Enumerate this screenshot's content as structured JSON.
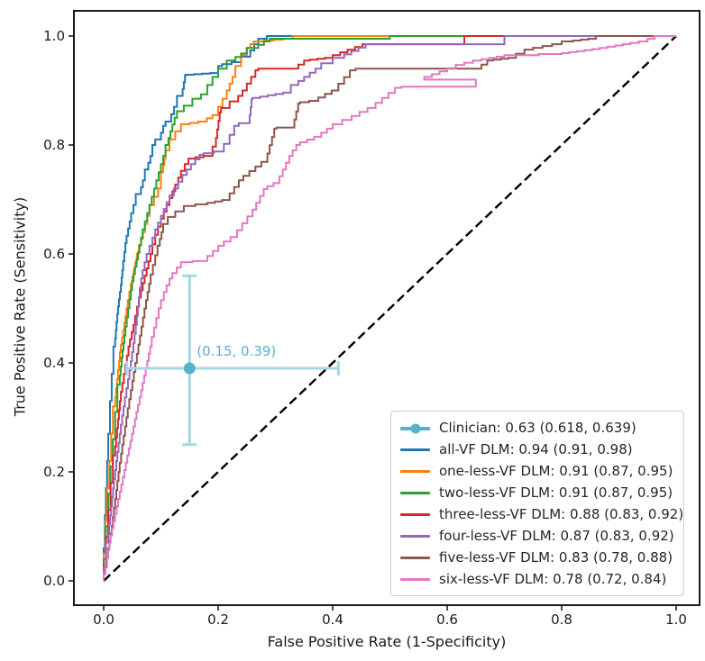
{
  "chart_data": {
    "type": "line",
    "subtype": "roc-curves",
    "title": "",
    "xlabel": "False Positive Rate (1-Specificity)",
    "ylabel": "True Positive Rate (Sensitivity)",
    "xticks": [
      "0.0",
      "0.2",
      "0.4",
      "0.6",
      "0.8",
      "1.0"
    ],
    "yticks": [
      "0.0",
      "0.2",
      "0.4",
      "0.6",
      "0.8",
      "1.0"
    ],
    "xlim": [
      -0.05,
      1.04
    ],
    "ylim": [
      -0.045,
      1.05
    ],
    "grid": false,
    "legend_position": "lower right",
    "diagonal_reference": {
      "from": [
        0,
        0
      ],
      "to": [
        1,
        1
      ],
      "style": "dashed",
      "color": "#000000"
    },
    "clinician": {
      "legend_label": "Clinician: 0.63 (0.618, 0.639)",
      "annotation": "(0.15, 0.39)",
      "x": 0.15,
      "y": 0.39,
      "x_ci": [
        0.04,
        0.41
      ],
      "y_ci": [
        0.25,
        0.56
      ],
      "auc": 0.63,
      "auc_ci": [
        0.618,
        0.639
      ],
      "color": "#54b2cb",
      "errorbar_color": "#a6d8e3"
    },
    "series": [
      {
        "name": "all-VF DLM",
        "legend_label": "all-VF DLM: 0.94 (0.91, 0.98)",
        "auc": 0.94,
        "ci": [
          0.91,
          0.98
        ],
        "color": "#1f77b4",
        "points": [
          [
            0,
            0
          ],
          [
            0.002,
            0.06
          ],
          [
            0.004,
            0.12
          ],
          [
            0.006,
            0.17
          ],
          [
            0.008,
            0.22
          ],
          [
            0.011,
            0.27
          ],
          [
            0.014,
            0.33
          ],
          [
            0.017,
            0.38
          ],
          [
            0.02,
            0.43
          ],
          [
            0.025,
            0.49
          ],
          [
            0.03,
            0.53
          ],
          [
            0.034,
            0.57
          ],
          [
            0.04,
            0.62
          ],
          [
            0.048,
            0.66
          ],
          [
            0.056,
            0.69
          ],
          [
            0.065,
            0.71
          ],
          [
            0.072,
            0.735
          ],
          [
            0.078,
            0.755
          ],
          [
            0.085,
            0.78
          ],
          [
            0.09,
            0.8
          ],
          [
            0.1,
            0.81
          ],
          [
            0.108,
            0.835
          ],
          [
            0.118,
            0.843
          ],
          [
            0.128,
            0.87
          ],
          [
            0.138,
            0.89
          ],
          [
            0.144,
            0.928
          ],
          [
            0.2,
            0.932
          ],
          [
            0.207,
            0.945
          ],
          [
            0.24,
            0.952
          ],
          [
            0.256,
            0.962
          ],
          [
            0.27,
            0.985
          ],
          [
            0.285,
            0.995
          ],
          [
            0.295,
            1.0
          ],
          [
            1,
            1
          ]
        ]
      },
      {
        "name": "one-less-VF DLM",
        "legend_label": "one-less-VF DLM: 0.91 (0.87, 0.95)",
        "auc": 0.91,
        "ci": [
          0.87,
          0.95
        ],
        "color": "#ff7f0e",
        "points": [
          [
            0,
            0
          ],
          [
            0.003,
            0.05
          ],
          [
            0.006,
            0.11
          ],
          [
            0.01,
            0.17
          ],
          [
            0.013,
            0.22
          ],
          [
            0.016,
            0.27
          ],
          [
            0.02,
            0.32
          ],
          [
            0.025,
            0.37
          ],
          [
            0.03,
            0.42
          ],
          [
            0.036,
            0.46
          ],
          [
            0.042,
            0.5
          ],
          [
            0.05,
            0.545
          ],
          [
            0.058,
            0.585
          ],
          [
            0.065,
            0.615
          ],
          [
            0.072,
            0.64
          ],
          [
            0.08,
            0.67
          ],
          [
            0.088,
            0.69
          ],
          [
            0.095,
            0.705
          ],
          [
            0.1,
            0.72
          ],
          [
            0.104,
            0.75
          ],
          [
            0.108,
            0.775
          ],
          [
            0.115,
            0.79
          ],
          [
            0.125,
            0.81
          ],
          [
            0.135,
            0.825
          ],
          [
            0.15,
            0.838
          ],
          [
            0.18,
            0.843
          ],
          [
            0.2,
            0.855
          ],
          [
            0.215,
            0.885
          ],
          [
            0.22,
            0.9
          ],
          [
            0.23,
            0.925
          ],
          [
            0.24,
            0.945
          ],
          [
            0.25,
            0.965
          ],
          [
            0.256,
            0.978
          ],
          [
            0.262,
            0.985
          ],
          [
            0.28,
            0.99
          ],
          [
            0.33,
            0.995
          ],
          [
            0.345,
            1.0
          ],
          [
            1,
            1
          ]
        ]
      },
      {
        "name": "two-less-VF DLM",
        "legend_label": "two-less-VF DLM: 0.91 (0.87, 0.95)",
        "auc": 0.91,
        "ci": [
          0.87,
          0.95
        ],
        "color": "#2ca02c",
        "points": [
          [
            0,
            0
          ],
          [
            0.004,
            0.04
          ],
          [
            0.008,
            0.1
          ],
          [
            0.012,
            0.16
          ],
          [
            0.016,
            0.21
          ],
          [
            0.02,
            0.26
          ],
          [
            0.024,
            0.31
          ],
          [
            0.028,
            0.36
          ],
          [
            0.033,
            0.41
          ],
          [
            0.038,
            0.45
          ],
          [
            0.045,
            0.5
          ],
          [
            0.052,
            0.55
          ],
          [
            0.06,
            0.59
          ],
          [
            0.068,
            0.63
          ],
          [
            0.076,
            0.66
          ],
          [
            0.084,
            0.69
          ],
          [
            0.092,
            0.72
          ],
          [
            0.1,
            0.75
          ],
          [
            0.108,
            0.78
          ],
          [
            0.113,
            0.8
          ],
          [
            0.12,
            0.825
          ],
          [
            0.128,
            0.85
          ],
          [
            0.14,
            0.862
          ],
          [
            0.155,
            0.872
          ],
          [
            0.17,
            0.885
          ],
          [
            0.181,
            0.893
          ],
          [
            0.19,
            0.91
          ],
          [
            0.2,
            0.925
          ],
          [
            0.215,
            0.94
          ],
          [
            0.23,
            0.955
          ],
          [
            0.25,
            0.968
          ],
          [
            0.27,
            0.978
          ],
          [
            0.29,
            0.99
          ],
          [
            0.3,
            0.995
          ],
          [
            0.5,
            0.995
          ],
          [
            0.51,
            1.0
          ],
          [
            1,
            1
          ]
        ]
      },
      {
        "name": "three-less-VF DLM",
        "legend_label": "three-less-VF DLM: 0.88 (0.83, 0.92)",
        "auc": 0.88,
        "ci": [
          0.83,
          0.92
        ],
        "color": "#d62728",
        "points": [
          [
            0,
            0
          ],
          [
            0.004,
            0.03
          ],
          [
            0.008,
            0.08
          ],
          [
            0.012,
            0.13
          ],
          [
            0.016,
            0.18
          ],
          [
            0.02,
            0.23
          ],
          [
            0.025,
            0.28
          ],
          [
            0.03,
            0.33
          ],
          [
            0.038,
            0.38
          ],
          [
            0.046,
            0.43
          ],
          [
            0.055,
            0.47
          ],
          [
            0.065,
            0.52
          ],
          [
            0.075,
            0.56
          ],
          [
            0.085,
            0.6
          ],
          [
            0.095,
            0.635
          ],
          [
            0.105,
            0.665
          ],
          [
            0.115,
            0.69
          ],
          [
            0.125,
            0.715
          ],
          [
            0.135,
            0.74
          ],
          [
            0.148,
            0.765
          ],
          [
            0.16,
            0.775
          ],
          [
            0.19,
            0.78
          ],
          [
            0.196,
            0.797
          ],
          [
            0.205,
            0.86
          ],
          [
            0.22,
            0.868
          ],
          [
            0.235,
            0.88
          ],
          [
            0.25,
            0.9
          ],
          [
            0.265,
            0.925
          ],
          [
            0.27,
            0.937
          ],
          [
            0.34,
            0.94
          ],
          [
            0.36,
            0.955
          ],
          [
            0.4,
            0.96
          ],
          [
            0.465,
            0.985
          ],
          [
            0.63,
            0.985
          ],
          [
            0.635,
            1.0
          ],
          [
            1,
            1
          ]
        ]
      },
      {
        "name": "four-less-VF DLM",
        "legend_label": "four-less-VF DLM: 0.87 (0.83, 0.92)",
        "auc": 0.87,
        "ci": [
          0.83,
          0.92
        ],
        "color": "#9467bd",
        "points": [
          [
            0,
            0
          ],
          [
            0.004,
            0.025
          ],
          [
            0.008,
            0.07
          ],
          [
            0.013,
            0.12
          ],
          [
            0.018,
            0.17
          ],
          [
            0.024,
            0.22
          ],
          [
            0.03,
            0.27
          ],
          [
            0.037,
            0.32
          ],
          [
            0.045,
            0.37
          ],
          [
            0.052,
            0.42
          ],
          [
            0.058,
            0.47
          ],
          [
            0.063,
            0.52
          ],
          [
            0.068,
            0.555
          ],
          [
            0.075,
            0.585
          ],
          [
            0.085,
            0.615
          ],
          [
            0.095,
            0.645
          ],
          [
            0.105,
            0.67
          ],
          [
            0.115,
            0.695
          ],
          [
            0.13,
            0.72
          ],
          [
            0.145,
            0.745
          ],
          [
            0.16,
            0.765
          ],
          [
            0.175,
            0.782
          ],
          [
            0.21,
            0.788
          ],
          [
            0.22,
            0.802
          ],
          [
            0.236,
            0.835
          ],
          [
            0.255,
            0.84
          ],
          [
            0.26,
            0.884
          ],
          [
            0.327,
            0.896
          ],
          [
            0.34,
            0.91
          ],
          [
            0.36,
            0.925
          ],
          [
            0.38,
            0.94
          ],
          [
            0.4,
            0.95
          ],
          [
            0.42,
            0.96
          ],
          [
            0.47,
            0.985
          ],
          [
            0.7,
            0.985
          ],
          [
            0.705,
            1.0
          ],
          [
            1,
            1
          ]
        ]
      },
      {
        "name": "five-less-VF DLM",
        "legend_label": "five-less-VF DLM: 0.83 (0.78, 0.88)",
        "auc": 0.83,
        "ci": [
          0.78,
          0.88
        ],
        "color": "#8c564b",
        "points": [
          [
            0,
            0
          ],
          [
            0.005,
            0.025
          ],
          [
            0.01,
            0.06
          ],
          [
            0.016,
            0.1
          ],
          [
            0.022,
            0.15
          ],
          [
            0.028,
            0.2
          ],
          [
            0.035,
            0.25
          ],
          [
            0.042,
            0.3
          ],
          [
            0.05,
            0.35
          ],
          [
            0.058,
            0.4
          ],
          [
            0.066,
            0.45
          ],
          [
            0.074,
            0.5
          ],
          [
            0.082,
            0.545
          ],
          [
            0.09,
            0.58
          ],
          [
            0.098,
            0.615
          ],
          [
            0.104,
            0.64
          ],
          [
            0.112,
            0.655
          ],
          [
            0.125,
            0.668
          ],
          [
            0.14,
            0.678
          ],
          [
            0.16,
            0.688
          ],
          [
            0.181,
            0.691
          ],
          [
            0.22,
            0.699
          ],
          [
            0.244,
            0.735
          ],
          [
            0.265,
            0.752
          ],
          [
            0.286,
            0.769
          ],
          [
            0.302,
            0.83
          ],
          [
            0.333,
            0.832
          ],
          [
            0.343,
            0.876
          ],
          [
            0.375,
            0.881
          ],
          [
            0.41,
            0.9
          ],
          [
            0.44,
            0.937
          ],
          [
            0.66,
            0.94
          ],
          [
            0.68,
            0.955
          ],
          [
            0.72,
            0.96
          ],
          [
            0.75,
            0.975
          ],
          [
            0.8,
            0.985
          ],
          [
            0.82,
            0.99
          ],
          [
            0.86,
            0.995
          ],
          [
            0.865,
            1.0
          ],
          [
            1,
            1
          ]
        ]
      },
      {
        "name": "six-less-VF DLM",
        "legend_label": "six-less-VF DLM: 0.78 (0.72, 0.84)",
        "auc": 0.78,
        "ci": [
          0.72,
          0.84
        ],
        "color": "#e377c2",
        "points": [
          [
            0,
            0
          ],
          [
            0.006,
            0.03
          ],
          [
            0.012,
            0.07
          ],
          [
            0.02,
            0.11
          ],
          [
            0.028,
            0.15
          ],
          [
            0.036,
            0.19
          ],
          [
            0.044,
            0.23
          ],
          [
            0.052,
            0.27
          ],
          [
            0.06,
            0.31
          ],
          [
            0.068,
            0.35
          ],
          [
            0.076,
            0.39
          ],
          [
            0.084,
            0.43
          ],
          [
            0.092,
            0.465
          ],
          [
            0.1,
            0.5
          ],
          [
            0.11,
            0.53
          ],
          [
            0.12,
            0.555
          ],
          [
            0.135,
            0.575
          ],
          [
            0.155,
            0.585
          ],
          [
            0.181,
            0.587
          ],
          [
            0.21,
            0.615
          ],
          [
            0.233,
            0.631
          ],
          [
            0.26,
            0.669
          ],
          [
            0.286,
            0.719
          ],
          [
            0.307,
            0.73
          ],
          [
            0.33,
            0.78
          ],
          [
            0.343,
            0.8
          ],
          [
            0.38,
            0.815
          ],
          [
            0.4,
            0.83
          ],
          [
            0.433,
            0.846
          ],
          [
            0.475,
            0.868
          ],
          [
            0.52,
            0.905
          ],
          [
            0.65,
            0.907
          ],
          [
            0.56,
            0.92
          ],
          [
            0.6,
            0.935
          ],
          [
            0.63,
            0.947
          ],
          [
            0.66,
            0.955
          ],
          [
            0.7,
            0.962
          ],
          [
            0.76,
            0.965
          ],
          [
            0.8,
            0.967
          ],
          [
            0.84,
            0.972
          ],
          [
            0.88,
            0.978
          ],
          [
            0.92,
            0.985
          ],
          [
            0.95,
            0.99
          ],
          [
            0.975,
            1.0
          ],
          [
            1,
            1
          ]
        ]
      }
    ]
  }
}
